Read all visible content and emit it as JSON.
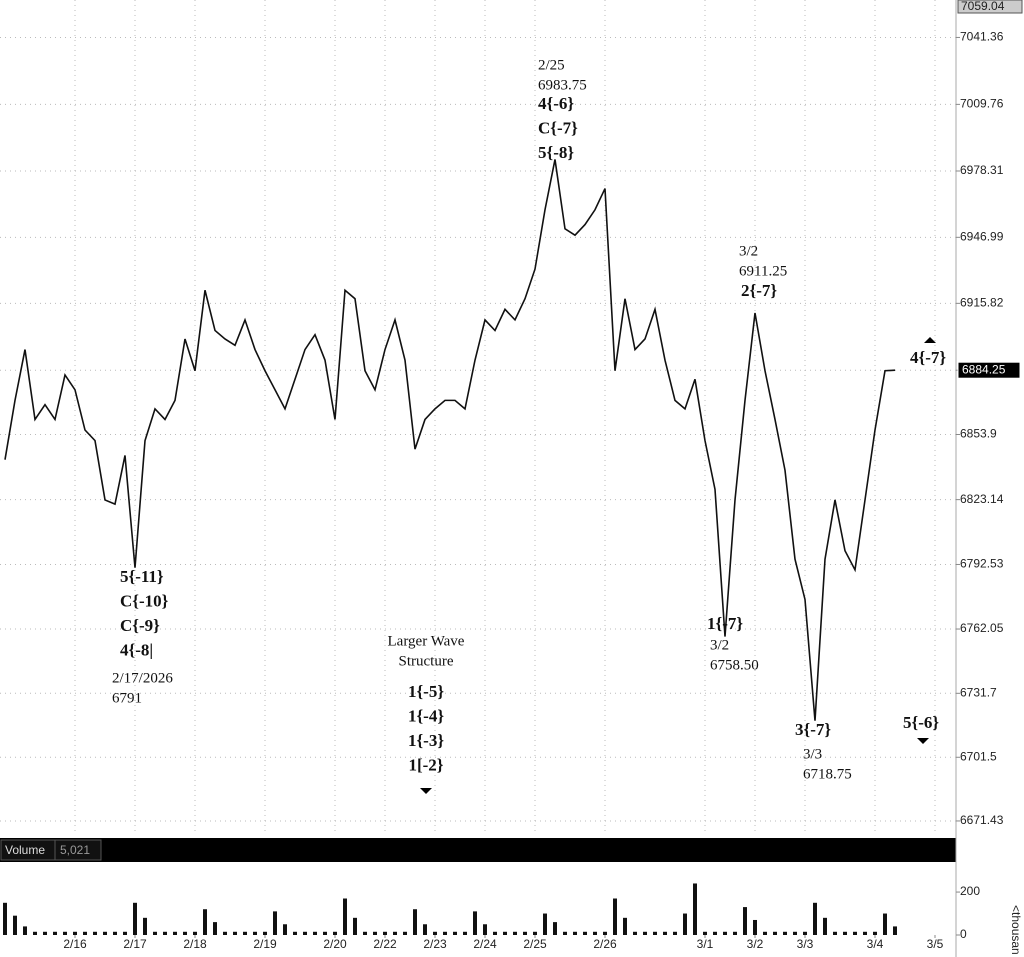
{
  "chart_data": [
    {
      "type": "line",
      "color": "#111111",
      "grid": true,
      "categories": [
        null,
        null,
        null,
        null,
        null,
        null,
        null,
        "2/16",
        null,
        null,
        null,
        null,
        null,
        "2/17",
        null,
        null,
        null,
        null,
        null,
        "2/18",
        null,
        null,
        null,
        null,
        null,
        null,
        "2/19",
        null,
        null,
        null,
        null,
        null,
        null,
        "2/20",
        null,
        null,
        null,
        null,
        "2/22",
        null,
        null,
        null,
        null,
        "2/23",
        null,
        null,
        null,
        null,
        "2/24",
        null,
        null,
        null,
        null,
        "2/25",
        null,
        null,
        null,
        null,
        null,
        null,
        "2/26",
        null,
        null,
        null,
        null,
        null,
        null,
        null,
        null,
        null,
        "3/1",
        null,
        null,
        null,
        null,
        "3/2",
        null,
        null,
        null,
        null,
        "3/3",
        null,
        null,
        null,
        null,
        null,
        null,
        "3/4",
        null,
        null,
        null,
        null,
        null,
        "3/5",
        null,
        null
      ],
      "values": [
        6842,
        6870,
        6894,
        6861,
        6868,
        6861,
        6882,
        6875,
        6856,
        6851,
        6823,
        6821,
        6844,
        6791,
        6851,
        6866,
        6861,
        6870,
        6899,
        6884,
        6922,
        6903,
        6899,
        6896,
        6908,
        6894,
        6884,
        6875,
        6866,
        6880,
        6894,
        6901,
        6889,
        6861,
        6922,
        6918,
        6884,
        6875,
        6894,
        6908,
        6889,
        6847,
        6861,
        6866,
        6870,
        6870,
        6866,
        6889,
        6908,
        6903,
        6913,
        6908,
        6918,
        6932,
        6960,
        6983.75,
        6951,
        6948,
        6953,
        6960,
        6970,
        6884,
        6918,
        6894,
        6899,
        6913,
        6889,
        6870,
        6866,
        6880,
        6851,
        6828,
        6758.5,
        6823,
        6870,
        6911.25,
        6884,
        6861,
        6837,
        6795,
        6776,
        6718.75,
        6795,
        6823,
        6799,
        6790,
        6823,
        6856,
        6884,
        6884.25,
        null,
        null,
        null,
        null,
        null,
        null
      ],
      "ylim": [
        6664.8,
        7059.04
      ],
      "yticks": [
        7041.36,
        7009.76,
        6978.31,
        6946.99,
        6915.82,
        6884.25,
        6853.9,
        6823.14,
        6792.53,
        6762.05,
        6731.7,
        6701.5,
        6671.43
      ],
      "annotations": [
        {
          "bold": [
            "5{-11}",
            "C{-10}",
            "C{-9}",
            "4{-8|"
          ],
          "normal": [
            "2/17/2026",
            "6791"
          ]
        },
        {
          "normal": [
            "2/25",
            "6983.75"
          ],
          "bold": [
            "4{-6}",
            "C{-7}",
            "5{-8}"
          ]
        },
        {
          "normal": [
            "3/2",
            "6911.25"
          ],
          "bold": [
            "2{-7}"
          ]
        },
        {
          "bold": [
            "4{-7}"
          ],
          "normal": []
        },
        {
          "bold": [
            "1{-7}"
          ],
          "normal": [
            "3/2",
            "6758.50"
          ]
        },
        {
          "bold": [
            "3{-7}"
          ],
          "normal": [
            "3/3",
            "6718.75"
          ]
        },
        {
          "bold": [
            "5{-6}"
          ],
          "normal": []
        },
        {
          "normal": [
            "Larger Wave",
            "Structure"
          ],
          "bold": [
            "1{-5}",
            "1{-4}",
            "1{-3}",
            "1[-2}"
          ]
        }
      ]
    },
    {
      "type": "bar",
      "title": "Volume",
      "last_label": "5,021",
      "y_label": "<thousan",
      "color": "#111111",
      "categories": [
        null,
        null,
        null,
        null,
        null,
        null,
        null,
        "2/16",
        null,
        null,
        null,
        null,
        null,
        "2/17",
        null,
        null,
        null,
        null,
        null,
        "2/18",
        null,
        null,
        null,
        null,
        null,
        null,
        "2/19",
        null,
        null,
        null,
        null,
        null,
        null,
        "2/20",
        null,
        null,
        null,
        null,
        "2/22",
        null,
        null,
        null,
        null,
        "2/23",
        null,
        null,
        null,
        null,
        "2/24",
        null,
        null,
        null,
        null,
        "2/25",
        null,
        null,
        null,
        null,
        null,
        null,
        "2/26",
        null,
        null,
        null,
        null,
        null,
        null,
        null,
        null,
        null,
        "3/1",
        null,
        null,
        null,
        null,
        "3/2",
        null,
        null,
        null,
        null,
        "3/3",
        null,
        null,
        null,
        null,
        null,
        null,
        "3/4",
        null,
        null,
        null,
        null,
        null,
        "3/5",
        null,
        null
      ],
      "values": [
        150,
        90,
        40,
        15,
        15,
        15,
        15,
        15,
        15,
        15,
        15,
        15,
        15,
        150,
        80,
        15,
        15,
        15,
        15,
        15,
        120,
        60,
        15,
        15,
        15,
        15,
        15,
        110,
        50,
        15,
        15,
        15,
        15,
        15,
        170,
        80,
        15,
        15,
        15,
        15,
        15,
        120,
        50,
        15,
        15,
        15,
        15,
        110,
        50,
        15,
        15,
        15,
        15,
        15,
        100,
        60,
        15,
        15,
        15,
        15,
        15,
        170,
        80,
        15,
        15,
        15,
        15,
        15,
        100,
        240,
        15,
        15,
        15,
        15,
        130,
        70,
        15,
        15,
        15,
        15,
        15,
        150,
        80,
        15,
        15,
        15,
        15,
        15,
        100,
        40,
        null,
        null,
        null,
        null,
        null,
        null
      ],
      "ylim": [
        0,
        340
      ],
      "yticks": [
        0,
        200
      ]
    }
  ]
}
